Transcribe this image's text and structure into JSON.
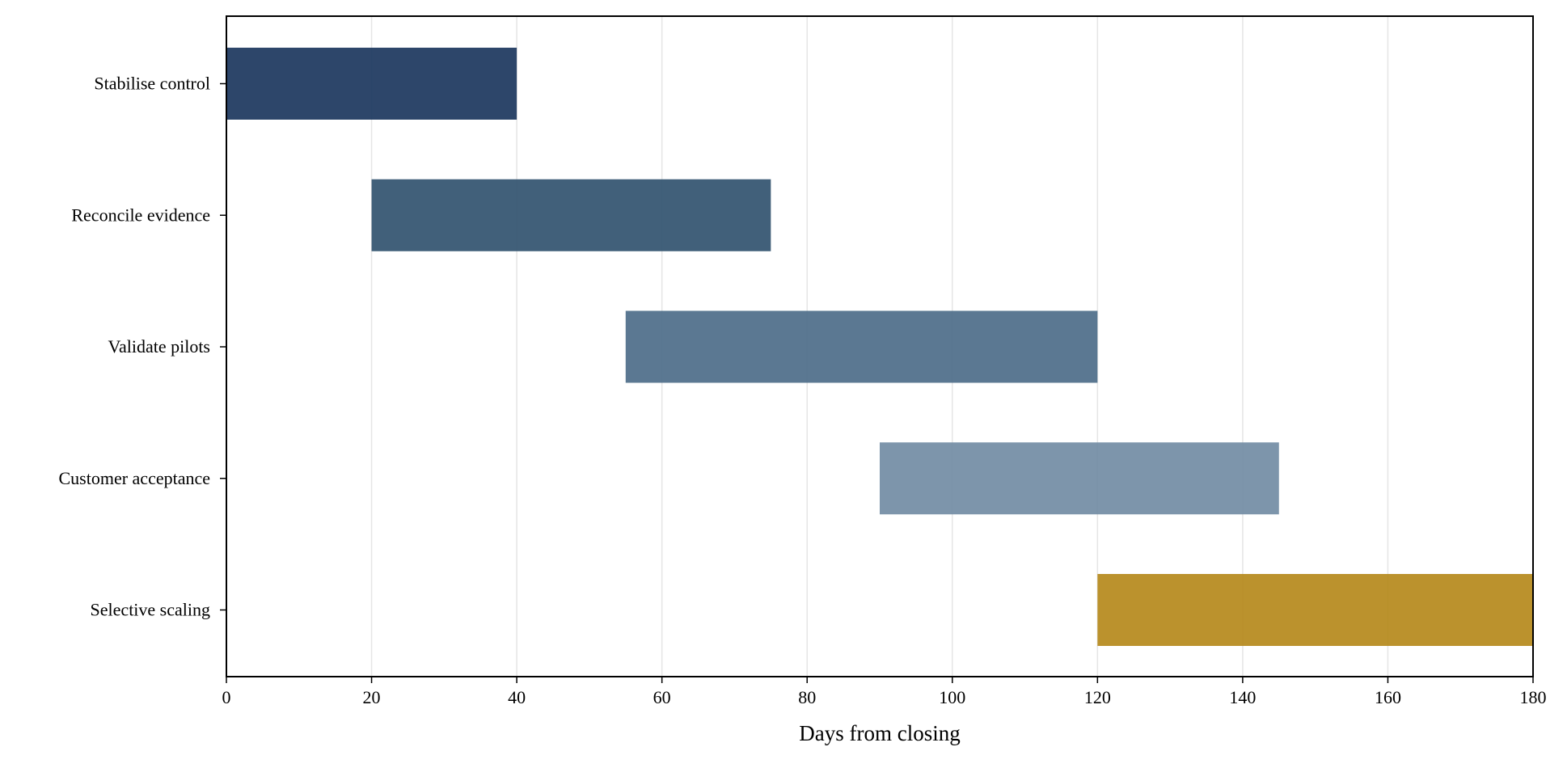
{
  "chart_data": {
    "type": "bar",
    "orientation": "horizontal",
    "subtype": "gantt",
    "title": "",
    "xlabel": "Days from closing",
    "ylabel": "",
    "xlim": [
      0,
      180
    ],
    "xticks": [
      0,
      20,
      40,
      60,
      80,
      100,
      120,
      140,
      160,
      180
    ],
    "grid": "vertical",
    "legend": "none",
    "tasks": [
      {
        "label": "Stabilise control",
        "start": 0,
        "end": 40,
        "color": "#1b365d"
      },
      {
        "label": "Reconcile evidence",
        "start": 20,
        "end": 75,
        "color": "#31526f"
      },
      {
        "label": "Validate pilots",
        "start": 55,
        "end": 120,
        "color": "#4d6d89"
      },
      {
        "label": "Customer acceptance",
        "start": 90,
        "end": 145,
        "color": "#728ca4"
      },
      {
        "label": "Selective scaling",
        "start": 120,
        "end": 180,
        "color": "#b5891b"
      }
    ]
  }
}
